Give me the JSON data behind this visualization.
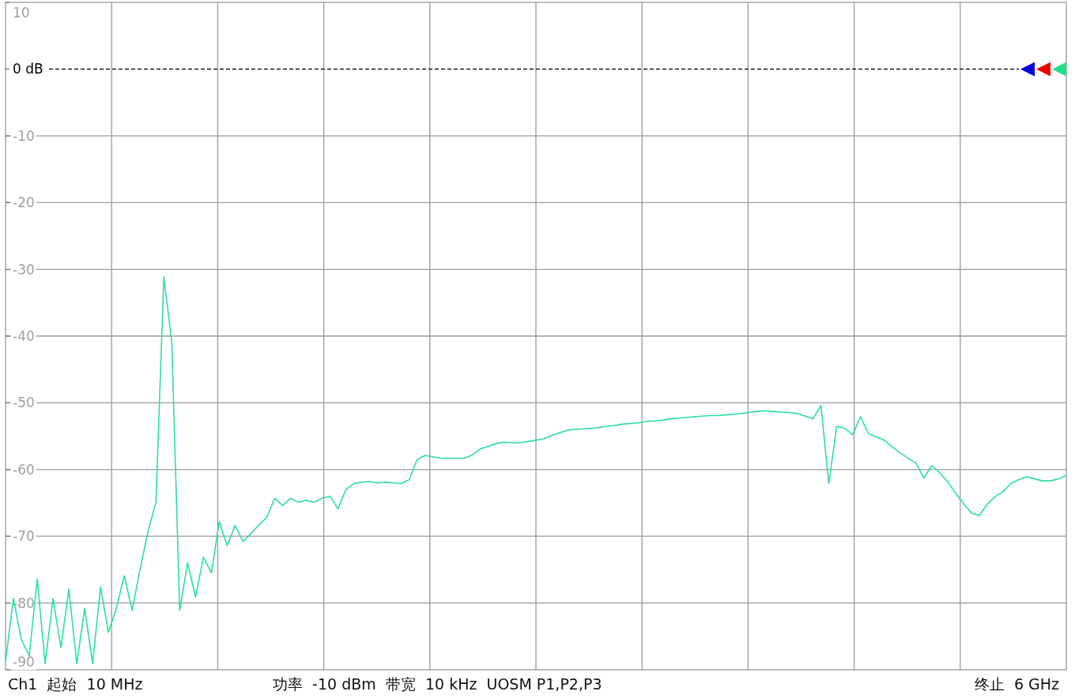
{
  "chart_data": {
    "type": "line",
    "categories": [
      null,
      null,
      null,
      null,
      null,
      null,
      null,
      null,
      null,
      null,
      null,
      null,
      null,
      null,
      null,
      null,
      null,
      null,
      null,
      null,
      null,
      null,
      null,
      null,
      null,
      null,
      null,
      null,
      null,
      null,
      null,
      null,
      null,
      null,
      null,
      null,
      null,
      null,
      null,
      null,
      null,
      null,
      null,
      null,
      null,
      null,
      null,
      null,
      null,
      null,
      null,
      null,
      null,
      null,
      null,
      null,
      null,
      null,
      null,
      null,
      null,
      null,
      null,
      null,
      null,
      null,
      null,
      null,
      null,
      null,
      null,
      null,
      null,
      null,
      null,
      null,
      null,
      null,
      null,
      null,
      null,
      null,
      null,
      null,
      null,
      null,
      null,
      null,
      null,
      null,
      null,
      null,
      null,
      null,
      null,
      null,
      null,
      null,
      null,
      null,
      null,
      null,
      null,
      null,
      null,
      null,
      null,
      null,
      null,
      null,
      null,
      null,
      null,
      null,
      null,
      null,
      null,
      null,
      null,
      null,
      null,
      null,
      null,
      null,
      null,
      null,
      null,
      null,
      null,
      null,
      null,
      null,
      null,
      null,
      null
    ],
    "ylim": [
      -90,
      10
    ],
    "yticks": [
      10,
      {
        "value": 0,
        "label": "0 dB"
      },
      -10,
      -20,
      -30,
      -40,
      -50,
      -60,
      -70,
      -80,
      -90
    ],
    "tick_labels": "y",
    "grid": true,
    "ref_lines": [
      {
        "axis": "y",
        "value": 0,
        "line_style": "dashed",
        "color": "#000000"
      }
    ],
    "series": [
      {
        "color": "#2ee09a",
        "values": [
          -88.8,
          -79.3,
          -85.5,
          -87.9,
          -76.4,
          -89.1,
          -79.3,
          -86.7,
          -77.9,
          -89.1,
          -80.8,
          -89.1,
          -77.6,
          -84.4,
          -80.8,
          -75.9,
          -81.1,
          -74.9,
          -69.3,
          -64.9,
          -31.1,
          -40.9,
          -81.1,
          -74.0,
          -79.1,
          -73.1,
          -75.5,
          -67.8,
          -71.4,
          -68.4,
          -70.8,
          -69.6,
          -68.3,
          -67.2,
          -64.3,
          -65.4,
          -64.3,
          -64.9,
          -64.6,
          -64.9,
          -64.3,
          -64.0,
          -65.9,
          -63.0,
          -62.1,
          -61.9,
          -61.8,
          -62.0,
          -61.9,
          -62.0,
          -62.1,
          -61.5,
          -58.5,
          -57.9,
          -58.1,
          -58.3,
          -58.3,
          -58.3,
          -58.3,
          -57.8,
          -56.9,
          -56.5,
          -56.1,
          -55.9,
          -56.0,
          -56.0,
          -55.8,
          -55.6,
          -55.4,
          -54.9,
          -54.5,
          -54.1,
          -54.0,
          -53.9,
          -53.8,
          -53.7,
          -53.5,
          -53.4,
          -53.2,
          -53.1,
          -53.0,
          -52.8,
          -52.7,
          -52.6,
          -52.4,
          -52.3,
          -52.2,
          -52.1,
          -52.0,
          -51.9,
          -51.9,
          -51.8,
          -51.7,
          -51.6,
          -51.4,
          -51.3,
          -51.2,
          -51.3,
          -51.4,
          -51.5,
          -51.6,
          -52.0,
          -52.4,
          -50.4,
          -62.1,
          -53.5,
          -53.8,
          -54.8,
          -52.1,
          -54.6,
          -55.1,
          -55.6,
          -56.6,
          -57.5,
          -58.3,
          -59.0,
          -61.3,
          -59.4,
          -60.5,
          -61.8,
          -63.5,
          -65.1,
          -66.5,
          -66.9,
          -65.2,
          -64.1,
          -63.3,
          -62.1,
          -61.5,
          -61.1,
          -61.4,
          -61.7,
          -61.7,
          -61.4,
          -60.9
        ]
      }
    ],
    "annotations": [
      "Ch1  起始  10 MHz",
      "功率  -10 dBm  带宽  10 kHz  UOSM P1,P2,P3",
      "终止  6 GHz"
    ]
  }
}
